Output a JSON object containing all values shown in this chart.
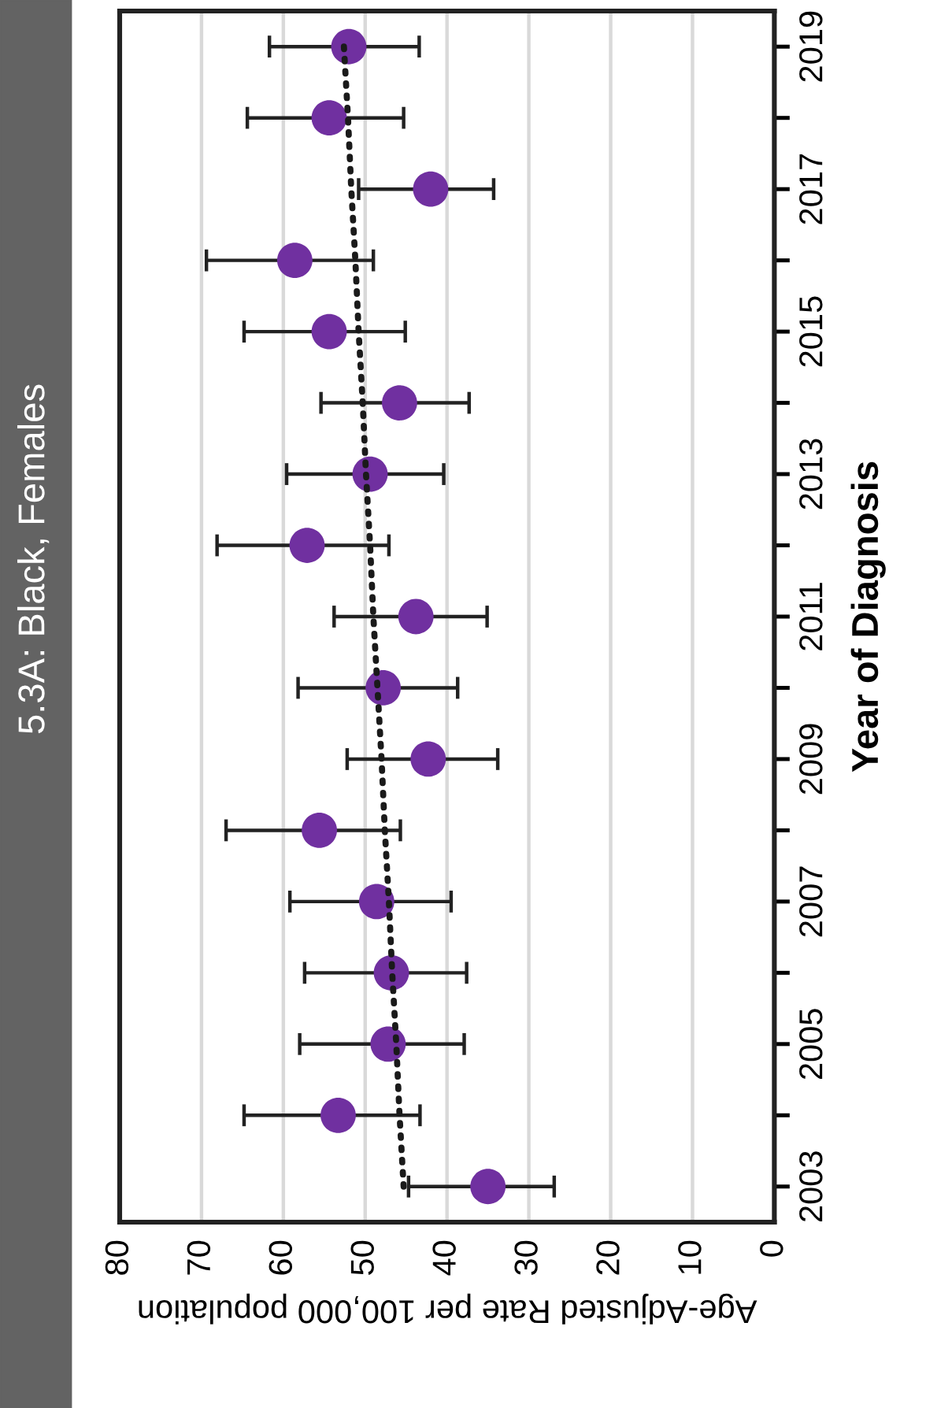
{
  "chart_data": {
    "type": "scatter",
    "orientation": "horizontal",
    "title": "5.3A: Black, Females",
    "xlabel": "Age-Adjusted Rate per 100,000 population",
    "ylabel": "Year of Diagnosis",
    "categories": [
      "2019",
      null,
      "2017",
      null,
      "2015",
      null,
      "2013",
      null,
      "2011",
      null,
      "2009",
      null,
      "2007",
      null,
      "2005",
      null,
      "2003"
    ],
    "series": [
      {
        "color": "#7030a0",
        "marker": "circle",
        "values": [
          52.0,
          54.4,
          42.0,
          58.6,
          54.4,
          45.8,
          49.4,
          57.1,
          43.8,
          47.8,
          42.3,
          55.6,
          48.6,
          46.8,
          47.2,
          53.3,
          35.0
        ],
        "errors": [
          [
            43.4,
            61.7
          ],
          [
            45.3,
            64.4
          ],
          [
            34.3,
            50.8
          ],
          [
            49.0,
            69.4
          ],
          [
            45.1,
            64.8
          ],
          [
            37.3,
            55.4
          ],
          [
            40.4,
            59.6
          ],
          [
            47.1,
            68.1
          ],
          [
            35.1,
            53.8
          ],
          [
            38.7,
            58.2
          ],
          [
            33.8,
            52.2
          ],
          [
            45.7,
            67.0
          ],
          [
            39.5,
            59.2
          ],
          [
            37.6,
            57.4
          ],
          [
            37.9,
            58.0
          ],
          [
            43.3,
            64.8
          ],
          [
            26.9,
            44.7
          ]
        ]
      },
      {
        "type": "line",
        "color": "#1a1a1a",
        "line_style": "dotted",
        "values": [
          52.6,
          52.1,
          51.7,
          51.2,
          50.8,
          50.3,
          49.9,
          49.4,
          49.0,
          48.5,
          48.0,
          47.6,
          47.1,
          46.7,
          46.2,
          45.8,
          45.3
        ]
      }
    ],
    "xlim": [
      80,
      0
    ],
    "xticks": [
      0,
      10,
      20,
      30,
      40,
      50,
      60,
      70,
      80
    ],
    "grid": "x",
    "legend": false
  }
}
